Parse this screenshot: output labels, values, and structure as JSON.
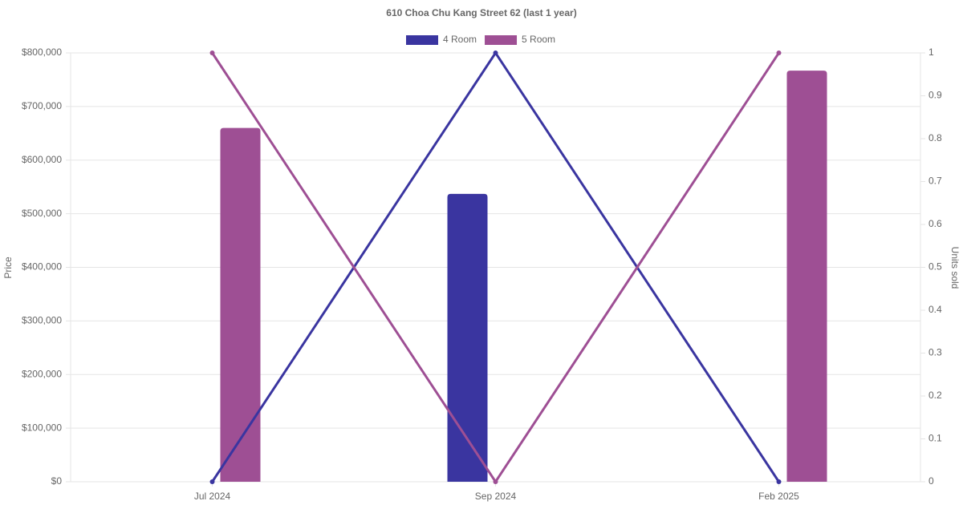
{
  "chart_data": {
    "type": "bar-line",
    "title": "610 Choa Chu Kang Street 62 (last 1 year)",
    "categories": [
      "Jul 2024",
      "Sep 2024",
      "Feb 2025"
    ],
    "series": [
      {
        "name": "4 Room",
        "color": "#3a35a0",
        "values": [
          null,
          537000,
          null
        ],
        "units": [
          0,
          1,
          0
        ]
      },
      {
        "name": "5 Room",
        "color": "#9e4f94",
        "values": [
          660000,
          null,
          767000
        ],
        "units": [
          1,
          0,
          1
        ]
      }
    ],
    "ylabel": "Price",
    "y2label": "Units sold",
    "ylim": [
      0,
      800000
    ],
    "yticks": [
      {
        "value": 0,
        "label": "$0"
      },
      {
        "value": 100000,
        "label": "$100,000"
      },
      {
        "value": 200000,
        "label": "$200,000"
      },
      {
        "value": 300000,
        "label": "$300,000"
      },
      {
        "value": 400000,
        "label": "$400,000"
      },
      {
        "value": 500000,
        "label": "$500,000"
      },
      {
        "value": 600000,
        "label": "$600,000"
      },
      {
        "value": 700000,
        "label": "$700,000"
      },
      {
        "value": 800000,
        "label": "$800,000"
      }
    ],
    "y2lim": [
      0,
      1
    ],
    "y2ticks": [
      0,
      0.1,
      0.2,
      0.3,
      0.4,
      0.5,
      0.6,
      0.7,
      0.8,
      0.9,
      1
    ],
    "grid": true
  }
}
